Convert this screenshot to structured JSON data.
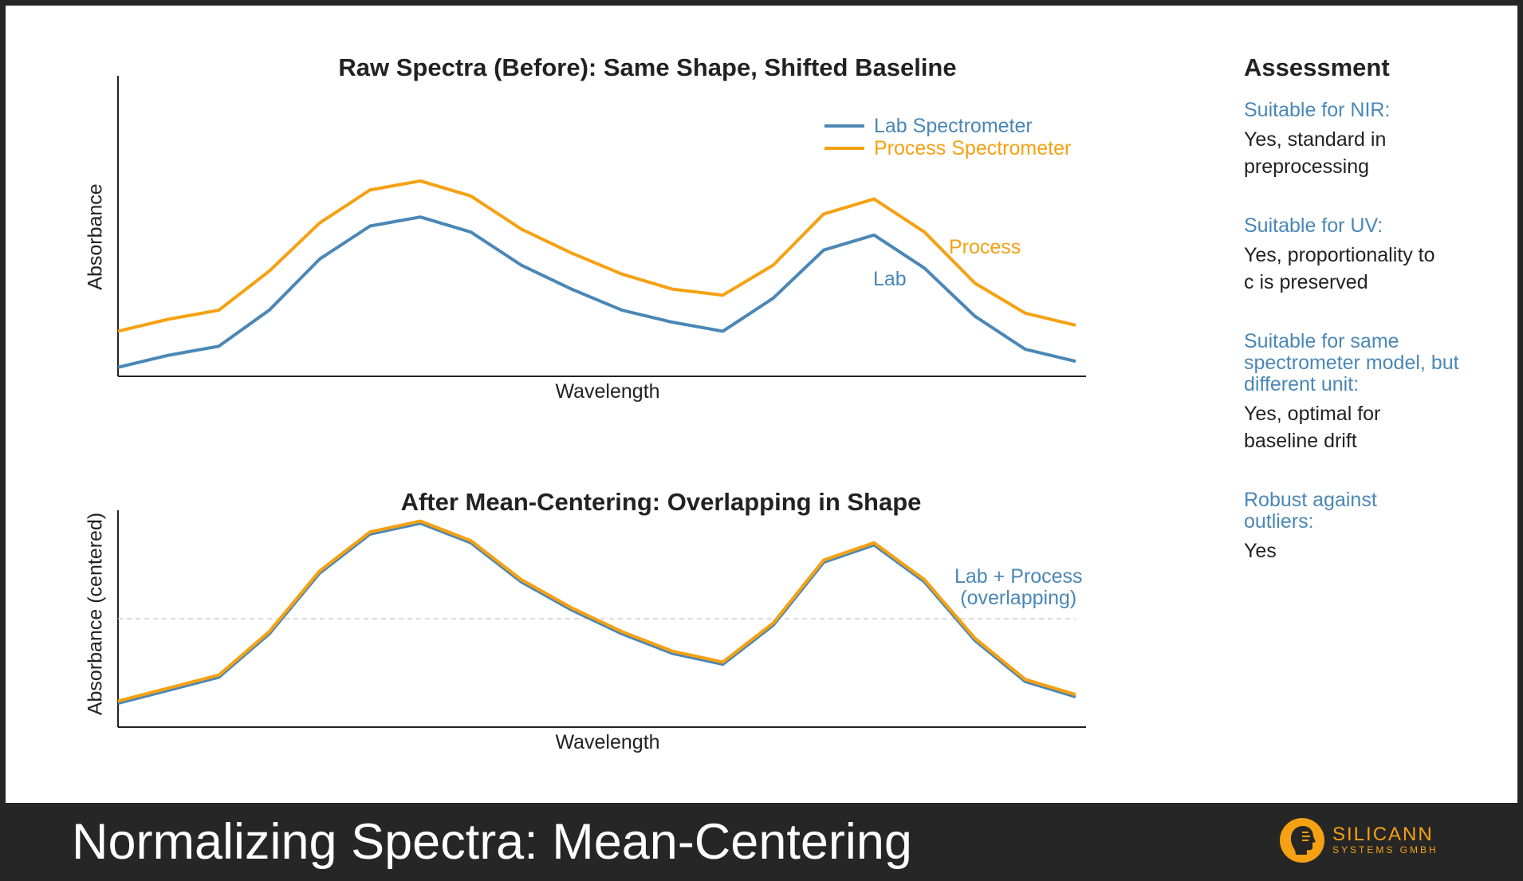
{
  "chart_data": [
    {
      "type": "line",
      "title": "Raw Spectra (Before): Same Shape, Shifted Baseline",
      "xlabel": "Wavelength",
      "ylabel": "Absorbance",
      "x": [
        1,
        2,
        3,
        4,
        5,
        6,
        7,
        8,
        9,
        10,
        11,
        12,
        13,
        14,
        15,
        16,
        17,
        18,
        19,
        20
      ],
      "ylim": [
        0,
        1
      ],
      "series": [
        {
          "name": "Lab Spectrometer",
          "color": "#4a87b6",
          "values": [
            0.03,
            0.07,
            0.1,
            0.22,
            0.39,
            0.5,
            0.53,
            0.48,
            0.37,
            0.29,
            0.22,
            0.18,
            0.15,
            0.26,
            0.42,
            0.47,
            0.36,
            0.2,
            0.09,
            0.05
          ]
        },
        {
          "name": "Process Spectrometer",
          "color": "#f5a113",
          "values": [
            0.15,
            0.19,
            0.22,
            0.35,
            0.51,
            0.62,
            0.65,
            0.6,
            0.49,
            0.41,
            0.34,
            0.29,
            0.27,
            0.37,
            0.54,
            0.59,
            0.48,
            0.31,
            0.21,
            0.17
          ]
        }
      ],
      "legend": "top-right",
      "annotations": [
        {
          "text": "Process",
          "color": "#f5a113"
        },
        {
          "text": "Lab",
          "color": "#4a87b6"
        }
      ],
      "grid": false
    },
    {
      "type": "line",
      "title": "After Mean-Centering: Overlapping in Shape",
      "xlabel": "Wavelength",
      "ylabel": "Absorbance (centered)",
      "x": [
        1,
        2,
        3,
        4,
        5,
        6,
        7,
        8,
        9,
        10,
        11,
        12,
        13,
        14,
        15,
        16,
        17,
        18,
        19,
        20
      ],
      "ylim": [
        -0.5,
        0.5
      ],
      "reference_line": 0,
      "series": [
        {
          "name": "Lab",
          "color": "#4a87b6",
          "values": [
            -0.39,
            -0.33,
            -0.27,
            -0.07,
            0.21,
            0.39,
            0.44,
            0.35,
            0.17,
            0.04,
            -0.07,
            -0.16,
            -0.21,
            -0.03,
            0.26,
            0.34,
            0.17,
            -0.1,
            -0.29,
            -0.36
          ]
        },
        {
          "name": "Process",
          "color": "#f5a113",
          "values": [
            -0.38,
            -0.32,
            -0.26,
            -0.06,
            0.22,
            0.4,
            0.45,
            0.36,
            0.18,
            0.05,
            -0.06,
            -0.15,
            -0.2,
            -0.02,
            0.27,
            0.35,
            0.18,
            -0.09,
            -0.28,
            -0.35
          ]
        }
      ],
      "annotations": [
        {
          "text": "Lab + Process\n(overlapping)",
          "color": "#4a87b6"
        }
      ],
      "grid": false
    }
  ],
  "assessment": {
    "title": "Assessment",
    "items": [
      {
        "q": "Suitable for NIR:",
        "a": "Yes, standard in preprocessing"
      },
      {
        "q": "Suitable for UV:",
        "a": "Yes, proportionality to c is preserved"
      },
      {
        "q": "Suitable for same spectrometer model, but different unit:",
        "a": "Yes, optimal for baseline drift"
      },
      {
        "q": "Robust against outliers:",
        "a": "Yes"
      }
    ]
  },
  "footer": {
    "title": "Normalizing Spectra: Mean-Centering",
    "logo_line1": "SILICANN",
    "logo_line2": "SYSTEMS GMBH",
    "brand_color": "#f5a113",
    "background": "#262626"
  }
}
